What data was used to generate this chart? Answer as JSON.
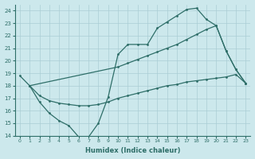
{
  "xlabel": "Humidex (Indice chaleur)",
  "bg_color": "#cce8ec",
  "line_color": "#2e6e68",
  "grid_color": "#aacdd4",
  "xlim": [
    -0.5,
    23.5
  ],
  "ylim": [
    14,
    24.5
  ],
  "xticks": [
    0,
    1,
    2,
    3,
    4,
    5,
    6,
    7,
    8,
    9,
    10,
    11,
    12,
    13,
    14,
    15,
    16,
    17,
    18,
    19,
    20,
    21,
    22,
    23
  ],
  "yticks": [
    14,
    15,
    16,
    17,
    18,
    19,
    20,
    21,
    22,
    23,
    24
  ],
  "line_zigzag_x": [
    0,
    1,
    2,
    3,
    4,
    5,
    6,
    7,
    8,
    9,
    10,
    11,
    12,
    13,
    14,
    15,
    16,
    17,
    18,
    19,
    20,
    21,
    22,
    23
  ],
  "line_zigzag_y": [
    18.8,
    18.0,
    16.7,
    15.8,
    15.2,
    14.8,
    13.9,
    13.9,
    15.0,
    17.1,
    20.5,
    21.3,
    21.3,
    21.3,
    22.6,
    23.1,
    23.6,
    24.1,
    24.2,
    23.3,
    22.8,
    20.8,
    19.3,
    18.2
  ],
  "line_upper_x": [
    1,
    10,
    11,
    12,
    13,
    14,
    15,
    16,
    17,
    18,
    19,
    20,
    21,
    22,
    23
  ],
  "line_upper_y": [
    18.0,
    19.5,
    19.8,
    20.1,
    20.4,
    20.7,
    21.0,
    21.3,
    21.7,
    22.1,
    22.5,
    22.8,
    20.8,
    19.3,
    18.2
  ],
  "line_lower_x": [
    1,
    2,
    3,
    4,
    5,
    6,
    7,
    8,
    9,
    10,
    11,
    12,
    13,
    14,
    15,
    16,
    17,
    18,
    19,
    20,
    21,
    22,
    23
  ],
  "line_lower_y": [
    18.0,
    17.2,
    16.8,
    16.6,
    16.5,
    16.4,
    16.4,
    16.5,
    16.7,
    17.0,
    17.2,
    17.4,
    17.6,
    17.8,
    18.0,
    18.1,
    18.3,
    18.4,
    18.5,
    18.6,
    18.7,
    18.9,
    18.2
  ]
}
